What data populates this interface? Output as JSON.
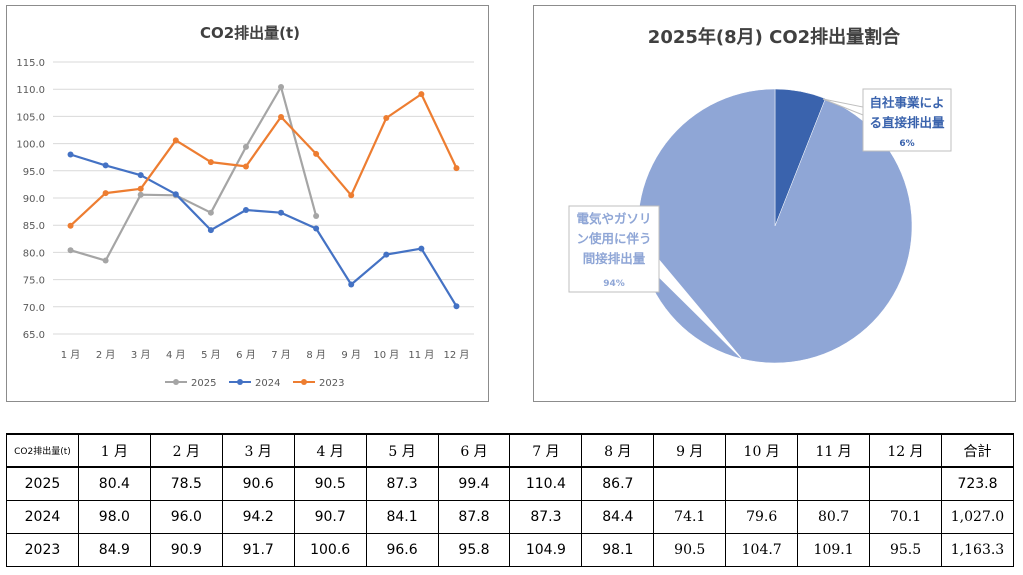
{
  "chart_data": [
    {
      "type": "line",
      "title": "CO2排出量(t)",
      "categories": [
        "1 月",
        "2 月",
        "3 月",
        "4 月",
        "5 月",
        "6 月",
        "7 月",
        "8 月",
        "9 月",
        "10 月",
        "11 月",
        "12 月"
      ],
      "ylim": [
        65,
        115
      ],
      "yticks": [
        "65.0",
        "70.0",
        "75.0",
        "80.0",
        "85.0",
        "90.0",
        "95.0",
        "100.0",
        "105.0",
        "110.0",
        "115.0"
      ],
      "grid": true,
      "legend_position": "bottom",
      "series": [
        {
          "name": "2025",
          "color": "#a5a5a5",
          "values": [
            80.4,
            78.5,
            90.6,
            90.5,
            87.3,
            99.4,
            110.4,
            86.7,
            null,
            null,
            null,
            null
          ]
        },
        {
          "name": "2024",
          "color": "#4472c4",
          "values": [
            98.0,
            96.0,
            94.2,
            90.7,
            84.1,
            87.8,
            87.3,
            84.4,
            74.1,
            79.6,
            80.7,
            70.1
          ]
        },
        {
          "name": "2023",
          "color": "#ed7d31",
          "values": [
            84.9,
            90.9,
            91.7,
            100.6,
            96.6,
            95.8,
            104.9,
            98.1,
            90.5,
            104.7,
            109.1,
            95.5
          ]
        }
      ]
    },
    {
      "type": "pie",
      "title": "2025年(8月) CO2排出量割合",
      "slices": [
        {
          "label_lines": [
            "自社事業によ",
            "る直接排出量"
          ],
          "pct_label": "6%",
          "value": 6,
          "color": "#3a63ad"
        },
        {
          "label_lines": [
            "電気やガソリ",
            "ン使用に伴う",
            "間接排出量"
          ],
          "pct_label": "94%",
          "value": 94,
          "color": "#8fa6d6"
        }
      ]
    }
  ],
  "table": {
    "corner": "CO2排出量(t)",
    "headers": [
      "1 月",
      "2 月",
      "3 月",
      "4 月",
      "5 月",
      "6 月",
      "7 月",
      "8 月",
      "9 月",
      "10 月",
      "11 月",
      "12 月",
      "合計"
    ],
    "rows": [
      {
        "year": "2025",
        "cells": [
          "80.4",
          "78.5",
          "90.6",
          "90.5",
          "87.3",
          "99.4",
          "110.4",
          "86.7",
          "",
          "",
          "",
          "",
          "723.8"
        ]
      },
      {
        "year": "2024",
        "cells": [
          "98.0",
          "96.0",
          "94.2",
          "90.7",
          "84.1",
          "87.8",
          "87.3",
          "84.4",
          "74.1",
          "79.6",
          "80.7",
          "70.1",
          "1,027.0"
        ]
      },
      {
        "year": "2023",
        "cells": [
          "84.9",
          "90.9",
          "91.7",
          "100.6",
          "96.6",
          "95.8",
          "104.9",
          "98.1",
          "90.5",
          "104.7",
          "109.1",
          "95.5",
          "1,163.3"
        ]
      }
    ]
  }
}
